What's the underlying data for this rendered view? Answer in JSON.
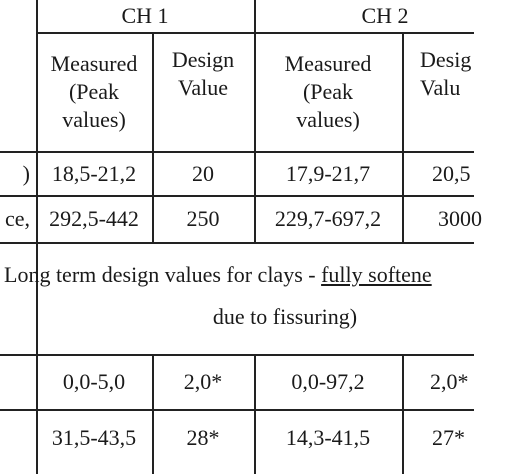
{
  "header": {
    "group1": "CH 1",
    "group2": "CH 2",
    "measured_line1": "Measured",
    "measured_line2": "(Peak",
    "measured_line3": "values)",
    "design_line1": "Design",
    "design_line2": "Value",
    "design2_line1": "Desig",
    "design2_line2": "Valu"
  },
  "rows": [
    {
      "left": ")",
      "ch1_measured": "18,5-21,2",
      "ch1_design": "20",
      "ch2_measured": "17,9-21,7",
      "ch2_design": "20,5"
    },
    {
      "left": "ce,",
      "ch1_measured": "292,5-442",
      "ch1_design": "250",
      "ch2_measured": "229,7-697,2",
      "ch2_design": "3000"
    }
  ],
  "section": {
    "line1_prefix": "Long term design values for clays - ",
    "line1_underlined": "fully softene",
    "line2": "due to fissuring)"
  },
  "rows2": [
    {
      "ch1_measured": "0,0-5,0",
      "ch1_design": "2,0*",
      "ch2_measured": "0,0-97,2",
      "ch2_design": "2,0*"
    },
    {
      "ch1_measured": "31,5-43,5",
      "ch1_design": "28*",
      "ch2_measured": "14,3-41,5",
      "ch2_design": "27*"
    }
  ]
}
